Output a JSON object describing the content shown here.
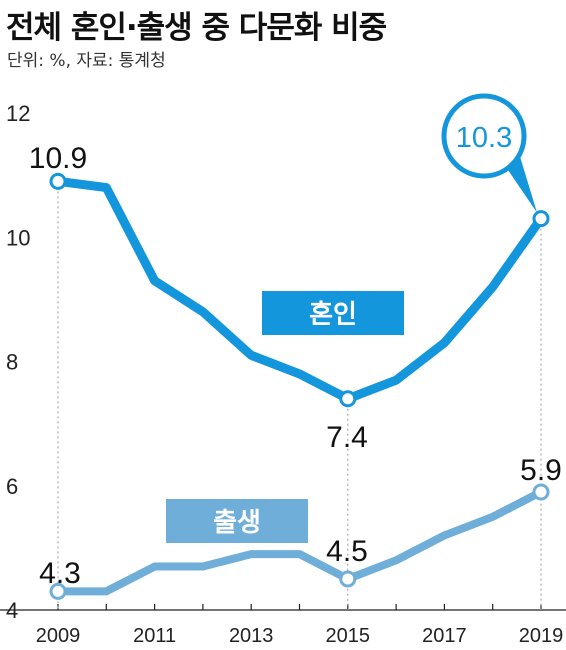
{
  "title": "전체 혼인·출생 중 다문화 비중",
  "subtitle": "단위: %, 자료: 통계청",
  "colors": {
    "marriage": "#1496dc",
    "birth": "#6faed9",
    "grid": "#9a9a9a"
  },
  "chart_data": {
    "type": "line",
    "x": [
      2009,
      2010,
      2011,
      2012,
      2013,
      2014,
      2015,
      2016,
      2017,
      2018,
      2019
    ],
    "xticks": [
      "2009",
      "2011",
      "2013",
      "2015",
      "2017",
      "2019"
    ],
    "yticks": [
      "4",
      "6",
      "8",
      "10",
      "12"
    ],
    "ylim": [
      4,
      12
    ],
    "series": [
      {
        "name": "혼인",
        "values": [
          10.9,
          10.8,
          9.3,
          8.8,
          8.1,
          7.8,
          7.4,
          7.7,
          8.3,
          9.2,
          10.3
        ]
      },
      {
        "name": "출생",
        "values": [
          4.3,
          4.3,
          4.7,
          4.7,
          4.9,
          4.9,
          4.5,
          4.8,
          5.2,
          5.5,
          5.9
        ]
      }
    ],
    "data_labels": [
      {
        "series": 0,
        "index": 0,
        "text": "10.9"
      },
      {
        "series": 0,
        "index": 6,
        "text": "7.4"
      },
      {
        "series": 0,
        "index": 10,
        "text": "10.3"
      },
      {
        "series": 1,
        "index": 0,
        "text": "4.3"
      },
      {
        "series": 1,
        "index": 6,
        "text": "4.5"
      },
      {
        "series": 1,
        "index": 10,
        "text": "5.9"
      }
    ]
  }
}
